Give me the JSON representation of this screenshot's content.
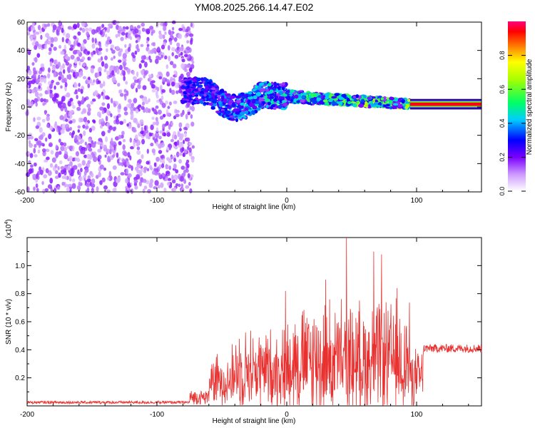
{
  "title": "YM08.2025.266.14.47.E02",
  "colors": {
    "snr_line": "#e8302f",
    "axis": "#000000",
    "background": "#ffffff"
  },
  "chart_data": [
    {
      "type": "heatmap",
      "title": "YM08.2025.266.14.47.E02",
      "xlabel": "Height of straight line (km)",
      "ylabel": "Frequency (Hz)",
      "xlim": [
        -200,
        150
      ],
      "ylim": [
        -60,
        60
      ],
      "xticks": [
        -200,
        -100,
        0,
        100
      ],
      "yticks": [
        -60,
        -40,
        -20,
        0,
        20,
        40,
        60
      ],
      "colorbar": {
        "label": "Normalized spectral amplitude",
        "range": [
          0,
          1
        ],
        "ticks": [
          "0.0",
          "0.2",
          "0.4",
          "0.6",
          "0.8"
        ]
      },
      "features": [
        {
          "name": "broadband noise",
          "x_range": [
            -200,
            -72
          ],
          "freq_range": [
            -60,
            60
          ],
          "amplitude": 0.1
        },
        {
          "name": "signal band",
          "x_range": [
            -80,
            95
          ],
          "freq_center_start": 12,
          "freq_center_end": 2,
          "amplitude_range": [
            0.15,
            0.6
          ]
        },
        {
          "name": "steady tone",
          "x_range": [
            95,
            150
          ],
          "freq": 2,
          "amplitude": 0.95
        }
      ]
    },
    {
      "type": "line",
      "xlabel": "Height of straight line (km)",
      "ylabel": "SNR (10 * v/v)",
      "y_multiplier": "(x10^4)",
      "y_multiplier_base": "(x10",
      "y_multiplier_exp": "4",
      "xlim": [
        -200,
        150
      ],
      "ylim": [
        0,
        1.2
      ],
      "xticks": [
        -200,
        -100,
        0,
        100
      ],
      "yticks": [
        0.2,
        0.4,
        0.6,
        0.8,
        1.0
      ],
      "ytick_labels": [
        "0.2",
        "0.4",
        "0.6",
        "0.8",
        "1.0"
      ],
      "segments": [
        {
          "x": [
            -200,
            -75
          ],
          "level": 0.025,
          "jitter": 0.01
        },
        {
          "x": [
            -75,
            -60
          ],
          "level": 0.06,
          "jitter": 0.05
        },
        {
          "x": [
            -60,
            -40
          ],
          "level": 0.18,
          "jitter": 0.22
        },
        {
          "x": [
            -40,
            0
          ],
          "level": 0.26,
          "jitter": 0.35
        },
        {
          "x": [
            0,
            95
          ],
          "level": 0.32,
          "jitter": 0.5
        },
        {
          "x": [
            95,
            105
          ],
          "level": 0.2,
          "jitter": 0.25
        },
        {
          "x": [
            105,
            150
          ],
          "level": 0.41,
          "jitter": 0.03
        }
      ],
      "peaks": [
        {
          "x": -42,
          "y": 0.44
        },
        {
          "x": -1,
          "y": 0.82
        },
        {
          "x": 30,
          "y": 0.9
        },
        {
          "x": 46,
          "y": 1.2
        },
        {
          "x": 67,
          "y": 1.1
        },
        {
          "x": 73,
          "y": 1.08
        },
        {
          "x": 85,
          "y": 0.84
        }
      ]
    }
  ]
}
